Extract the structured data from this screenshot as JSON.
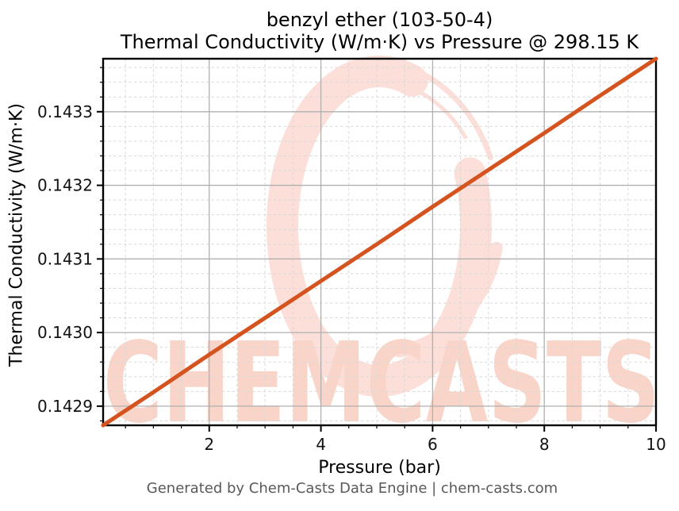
{
  "chart_data": {
    "type": "line",
    "title_line1": "benzyl ether (103-50-4)",
    "title_line2": "Thermal Conductivity (W/m·K) vs Pressure @ 298.15 K",
    "xlabel": "Pressure (bar)",
    "ylabel": "Thermal Conductivity (W/m·K)",
    "xlim": [
      0.1,
      10
    ],
    "ylim": [
      0.142874,
      0.143372
    ],
    "x_ticks": [
      2,
      4,
      6,
      8,
      10
    ],
    "x_tick_labels": [
      "2",
      "4",
      "6",
      "8",
      "10"
    ],
    "x_minor_step": 0.5,
    "y_ticks": [
      0.1429,
      0.143,
      0.1431,
      0.1432,
      0.1433
    ],
    "y_tick_labels": [
      "0.1429",
      "0.1430",
      "0.1431",
      "0.1432",
      "0.1433"
    ],
    "y_minor_step": 2e-05,
    "grid": {
      "major_style": "solid",
      "minor_style": "dashed",
      "major_color": "#b0b0b0",
      "minor_color": "#d9d9d9"
    },
    "legend": "none",
    "series": [
      {
        "name": "Thermal Conductivity",
        "color": "#d4531e",
        "x": [
          0.1,
          1,
          2,
          3,
          4,
          5,
          6,
          7,
          8,
          9,
          10
        ],
        "y": [
          0.142874,
          0.142919,
          0.14297,
          0.14302,
          0.14307,
          0.14312,
          0.143171,
          0.143221,
          0.143271,
          0.143322,
          0.143372
        ]
      }
    ]
  },
  "watermark": {
    "text": "CHEMCASTS",
    "text_color": "#f9d5c9",
    "ring_color": "#fbdfd8"
  },
  "footer": "Generated by Chem-Casts Data Engine | chem-casts.com"
}
